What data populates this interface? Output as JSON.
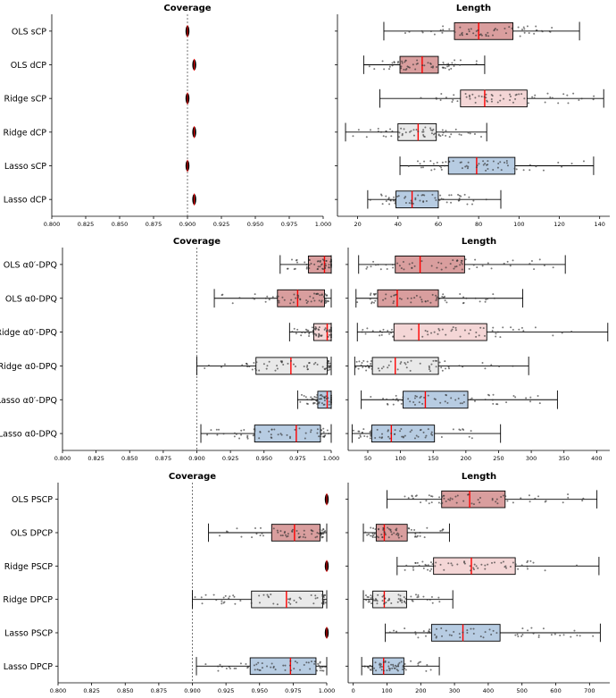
{
  "figure": {
    "colors": {
      "ols": "#d99e9e",
      "ridge": "#f4d6d6",
      "baseline": "#e9e9e9",
      "lasso": "#b7cce2",
      "median": "#ff0000",
      "dots": "#333333"
    }
  },
  "chart_data": [
    {
      "type": "box",
      "title": "Coverage",
      "row": 1,
      "xlim": [
        0.8,
        1.0
      ],
      "ticks": [
        "0.800",
        "0.825",
        "0.850",
        "0.875",
        "0.900",
        "0.925",
        "0.950",
        "0.975",
        "1.000"
      ],
      "reference_line": 0.9,
      "categories": [
        "OLS sCP",
        "OLS dCP",
        "Ridge sCP",
        "Ridge dCP",
        "Lasso sCP",
        "Lasso dCP"
      ],
      "series": [
        {
          "label": "OLS sCP",
          "min": 0.899,
          "q1": 0.8995,
          "median": 0.9,
          "q3": 0.9005,
          "max": 0.901,
          "color": "ols"
        },
        {
          "label": "OLS dCP",
          "min": 0.904,
          "q1": 0.9045,
          "median": 0.905,
          "q3": 0.9055,
          "max": 0.906,
          "color": "ols"
        },
        {
          "label": "Ridge sCP",
          "min": 0.899,
          "q1": 0.8995,
          "median": 0.9,
          "q3": 0.9005,
          "max": 0.901,
          "color": "ridge"
        },
        {
          "label": "Ridge dCP",
          "min": 0.904,
          "q1": 0.9045,
          "median": 0.905,
          "q3": 0.9055,
          "max": 0.906,
          "color": "baseline"
        },
        {
          "label": "Lasso sCP",
          "min": 0.899,
          "q1": 0.8995,
          "median": 0.9,
          "q3": 0.9005,
          "max": 0.901,
          "color": "lasso"
        },
        {
          "label": "Lasso dCP",
          "min": 0.904,
          "q1": 0.9045,
          "median": 0.905,
          "q3": 0.9055,
          "max": 0.906,
          "color": "lasso"
        }
      ]
    },
    {
      "type": "box",
      "title": "Length",
      "row": 1,
      "xlim": [
        10,
        145
      ],
      "ticks": [
        "20",
        "40",
        "60",
        "80",
        "100",
        "120",
        "140"
      ],
      "categories": [
        "OLS sCP",
        "OLS dCP",
        "Ridge sCP",
        "Ridge dCP",
        "Lasso sCP",
        "Lasso dCP"
      ],
      "series": [
        {
          "label": "OLS sCP",
          "min": 33,
          "q1": 68,
          "median": 80,
          "q3": 97,
          "max": 130,
          "color": "ols"
        },
        {
          "label": "OLS dCP",
          "min": 23,
          "q1": 41,
          "median": 52,
          "q3": 60,
          "max": 83,
          "color": "ols"
        },
        {
          "label": "Ridge sCP",
          "min": 31,
          "q1": 71,
          "median": 83,
          "q3": 104,
          "max": 142,
          "color": "ridge"
        },
        {
          "label": "Ridge dCP",
          "min": 14,
          "q1": 40,
          "median": 50,
          "q3": 59,
          "max": 84,
          "color": "baseline"
        },
        {
          "label": "Lasso sCP",
          "min": 41,
          "q1": 65,
          "median": 79,
          "q3": 98,
          "max": 137,
          "color": "lasso"
        },
        {
          "label": "Lasso dCP",
          "min": 25,
          "q1": 39,
          "median": 47,
          "q3": 60,
          "max": 91,
          "color": "lasso"
        }
      ]
    },
    {
      "type": "box",
      "title": "Coverage",
      "row": 2,
      "xlim": [
        0.8,
        1.0
      ],
      "ticks": [
        "0.800",
        "0.825",
        "0.850",
        "0.875",
        "0.900",
        "0.925",
        "0.950",
        "0.975",
        "1.000"
      ],
      "reference_line": 0.9,
      "categories": [
        "OLS α0′-DPQ",
        "OLS α0-DPQ",
        "Ridge α0′-DPQ",
        "Ridge α0-DPQ",
        "Lasso α0′-DPQ",
        "Lasso α0-DPQ"
      ],
      "series": [
        {
          "label": "OLS α0′-DPQ",
          "min": 0.962,
          "q1": 0.983,
          "median": 0.995,
          "q3": 1.0,
          "max": 1.0,
          "color": "ols"
        },
        {
          "label": "OLS α0-DPQ",
          "min": 0.913,
          "q1": 0.96,
          "median": 0.975,
          "q3": 0.995,
          "max": 1.0,
          "color": "ols"
        },
        {
          "label": "Ridge α0′-DPQ",
          "min": 0.969,
          "q1": 0.987,
          "median": 0.997,
          "q3": 1.0,
          "max": 1.0,
          "color": "ridge"
        },
        {
          "label": "Ridge α0-DPQ",
          "min": 0.9,
          "q1": 0.944,
          "median": 0.97,
          "q3": 0.997,
          "max": 1.0,
          "color": "baseline"
        },
        {
          "label": "Lasso α0′-DPQ",
          "min": 0.975,
          "q1": 0.99,
          "median": 0.997,
          "q3": 1.0,
          "max": 1.0,
          "color": "lasso"
        },
        {
          "label": "Lasso α0-DPQ",
          "min": 0.903,
          "q1": 0.943,
          "median": 0.974,
          "q3": 0.992,
          "max": 1.0,
          "color": "lasso"
        }
      ]
    },
    {
      "type": "box",
      "title": "Length",
      "row": 2,
      "xlim": [
        20,
        420
      ],
      "ticks": [
        "50",
        "100",
        "150",
        "200",
        "250",
        "300",
        "350",
        "400"
      ],
      "categories": [
        "OLS α0′-DPQ",
        "OLS α0-DPQ",
        "Ridge α0′-DPQ",
        "Ridge α0-DPQ",
        "Lasso α0′-DPQ",
        "Lasso α0-DPQ"
      ],
      "series": [
        {
          "label": "OLS α0′-DPQ",
          "min": 36,
          "q1": 92,
          "median": 130,
          "q3": 198,
          "max": 352,
          "color": "ols"
        },
        {
          "label": "OLS α0-DPQ",
          "min": 32,
          "q1": 65,
          "median": 95,
          "q3": 158,
          "max": 287,
          "color": "ols"
        },
        {
          "label": "Ridge α0′-DPQ",
          "min": 34,
          "q1": 90,
          "median": 128,
          "q3": 232,
          "max": 417,
          "color": "ridge"
        },
        {
          "label": "Ridge α0-DPQ",
          "min": 30,
          "q1": 57,
          "median": 92,
          "q3": 158,
          "max": 296,
          "color": "baseline"
        },
        {
          "label": "Lasso α0′-DPQ",
          "min": 40,
          "q1": 104,
          "median": 138,
          "q3": 203,
          "max": 340,
          "color": "lasso"
        },
        {
          "label": "Lasso α0-DPQ",
          "min": 26,
          "q1": 56,
          "median": 86,
          "q3": 152,
          "max": 253,
          "color": "lasso"
        }
      ]
    },
    {
      "type": "box",
      "title": "Coverage",
      "row": 3,
      "xlim": [
        0.8,
        1.0
      ],
      "ticks": [
        "0.800",
        "0.825",
        "0.850",
        "0.875",
        "0.900",
        "0.925",
        "0.950",
        "0.975",
        "1.000"
      ],
      "reference_line": 0.9,
      "categories": [
        "OLS PSCP",
        "OLS DPCP",
        "Ridge PSCP",
        "Ridge DPCP",
        "Lasso PSCP",
        "Lasso DPCP"
      ],
      "series": [
        {
          "label": "OLS PSCP",
          "min": 1.0,
          "q1": 1.0,
          "median": 1.0,
          "q3": 1.0,
          "max": 1.0,
          "color": "ols"
        },
        {
          "label": "OLS DPCP",
          "min": 0.912,
          "q1": 0.959,
          "median": 0.976,
          "q3": 0.995,
          "max": 1.0,
          "color": "ols"
        },
        {
          "label": "Ridge PSCP",
          "min": 1.0,
          "q1": 1.0,
          "median": 1.0,
          "q3": 1.0,
          "max": 1.0,
          "color": "ridge"
        },
        {
          "label": "Ridge DPCP",
          "min": 0.9,
          "q1": 0.944,
          "median": 0.97,
          "q3": 0.997,
          "max": 1.0,
          "color": "baseline"
        },
        {
          "label": "Lasso PSCP",
          "min": 1.0,
          "q1": 1.0,
          "median": 1.0,
          "q3": 1.0,
          "max": 1.0,
          "color": "lasso"
        },
        {
          "label": "Lasso DPCP",
          "min": 0.903,
          "q1": 0.943,
          "median": 0.973,
          "q3": 0.992,
          "max": 1.0,
          "color": "lasso"
        }
      ]
    },
    {
      "type": "box",
      "title": "Length",
      "row": 3,
      "xlim": [
        -15,
        760
      ],
      "ticks": [
        "0",
        "100",
        "200",
        "300",
        "400",
        "500",
        "600",
        "700"
      ],
      "categories": [
        "OLS PSCP",
        "OLS DPCP",
        "Ridge PSCP",
        "Ridge DPCP",
        "Lasso PSCP",
        "Lasso DPCP"
      ],
      "series": [
        {
          "label": "OLS PSCP",
          "min": 100,
          "q1": 262,
          "median": 345,
          "q3": 450,
          "max": 722,
          "color": "ols"
        },
        {
          "label": "OLS DPCP",
          "min": 30,
          "q1": 68,
          "median": 92,
          "q3": 160,
          "max": 285,
          "color": "ols"
        },
        {
          "label": "Ridge PSCP",
          "min": 130,
          "q1": 238,
          "median": 350,
          "q3": 480,
          "max": 728,
          "color": "ridge"
        },
        {
          "label": "Ridge DPCP",
          "min": 30,
          "q1": 58,
          "median": 92,
          "q3": 158,
          "max": 295,
          "color": "baseline"
        },
        {
          "label": "Lasso PSCP",
          "min": 95,
          "q1": 232,
          "median": 325,
          "q3": 435,
          "max": 732,
          "color": "lasso"
        },
        {
          "label": "Lasso DPCP",
          "min": 25,
          "q1": 58,
          "median": 90,
          "q3": 150,
          "max": 255,
          "color": "lasso"
        }
      ]
    }
  ]
}
